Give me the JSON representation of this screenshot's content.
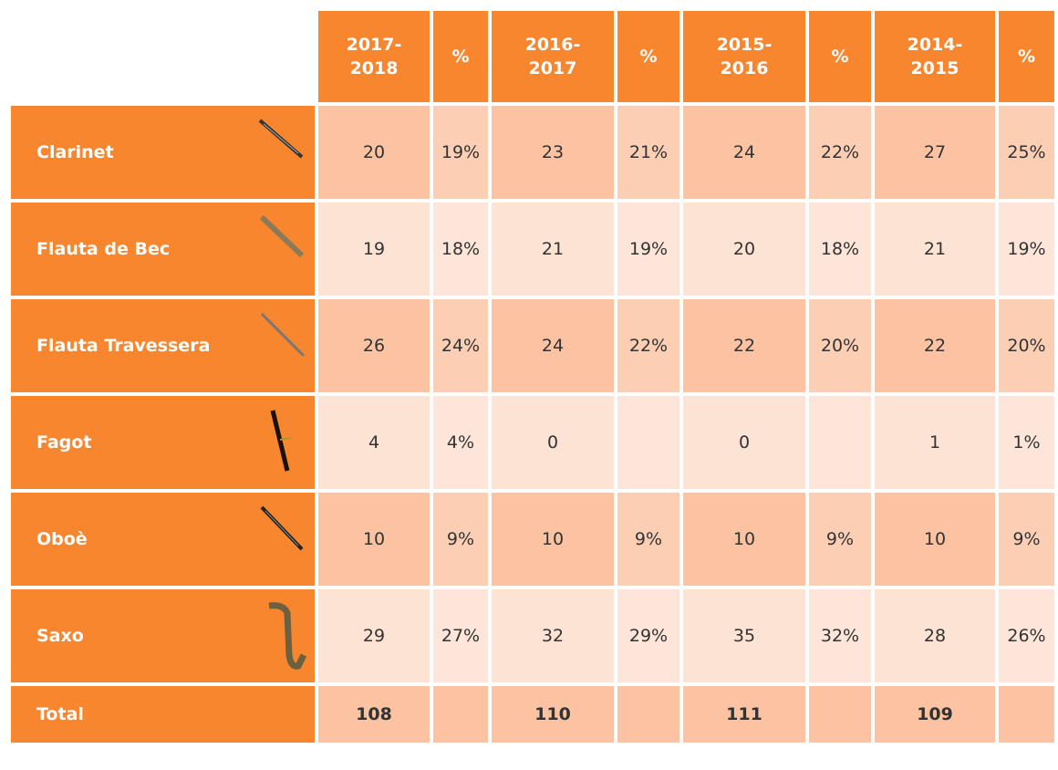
{
  "table": {
    "header": [
      "2017-\n2018",
      "%",
      "2016-\n2017",
      "%",
      "2015-\n2016",
      "%",
      "2014-\n2015",
      "%"
    ],
    "rows": [
      {
        "label": "Clarinet",
        "cells": [
          "20",
          "19%",
          "23",
          "21%",
          "24",
          "22%",
          "27",
          "25%"
        ]
      },
      {
        "label": "Flauta de Bec",
        "cells": [
          "19",
          "18%",
          "21",
          "19%",
          "20",
          "18%",
          "21",
          "19%"
        ]
      },
      {
        "label": "Flauta Travessera",
        "cells": [
          "26",
          "24%",
          "24",
          "22%",
          "22",
          "20%",
          "22",
          "20%"
        ]
      },
      {
        "label": "Fagot",
        "cells": [
          "4",
          "4%",
          "0",
          null,
          "0",
          null,
          "1",
          "1%"
        ]
      },
      {
        "label": "Oboè",
        "cells": [
          "10",
          "9%",
          "10",
          "9%",
          "10",
          "9%",
          "10",
          "9%"
        ]
      },
      {
        "label": "Saxo",
        "cells": [
          "29",
          "27%",
          "32",
          "29%",
          "35",
          "32%",
          "28",
          "26%"
        ]
      }
    ],
    "total": {
      "label": "Total",
      "cells": [
        "108",
        null,
        "110",
        null,
        "111",
        null,
        "109",
        null
      ]
    }
  }
}
